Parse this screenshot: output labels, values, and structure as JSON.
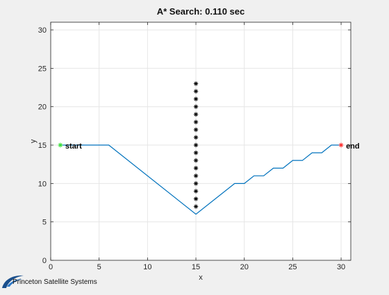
{
  "chart_data": {
    "type": "line",
    "title": "A* Search: 0.110 sec",
    "xlabel": "x",
    "ylabel": "y",
    "xlim": [
      0,
      31
    ],
    "ylim": [
      0,
      31
    ],
    "xticks": [
      0,
      5,
      10,
      15,
      20,
      25,
      30
    ],
    "yticks": [
      0,
      5,
      10,
      15,
      20,
      25,
      30
    ],
    "grid": true,
    "colors": {
      "path": "#0072BD",
      "start": "#33dd33",
      "end": "#ff2a2a",
      "obstacle": "#000000",
      "grid": "#e6e6e6",
      "axes_bg": "#ffffff",
      "figure_bg": "#f0f0f0"
    },
    "path": {
      "x": [
        1,
        6,
        15,
        19,
        20,
        21,
        22,
        23,
        24,
        25,
        26,
        27,
        28,
        29,
        30
      ],
      "y": [
        15,
        15,
        6,
        10,
        10,
        11,
        11,
        12,
        12,
        13,
        13,
        14,
        14,
        15,
        15
      ]
    },
    "obstacles": {
      "marker": "asterisk",
      "x": [
        15,
        15,
        15,
        15,
        15,
        15,
        15,
        15,
        15,
        15,
        15,
        15,
        15,
        15,
        15,
        15,
        15
      ],
      "y": [
        7,
        8,
        9,
        10,
        11,
        12,
        13,
        14,
        15,
        16,
        17,
        18,
        19,
        20,
        21,
        22,
        23
      ]
    },
    "start": {
      "x": 1,
      "y": 15,
      "marker": "asterisk",
      "label": "start"
    },
    "end": {
      "x": 30,
      "y": 15,
      "marker": "asterisk",
      "label": "end"
    }
  },
  "branding": {
    "text": "Princeton Satellite Systems",
    "logo_icon": "swoosh-logo-icon",
    "logo_color": "#1a4f8c"
  }
}
